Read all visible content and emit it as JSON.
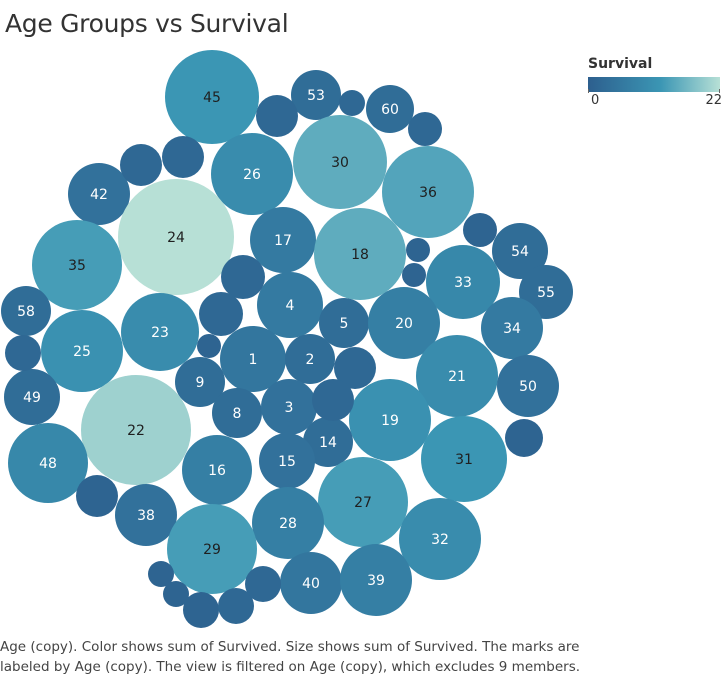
{
  "title": "Age Groups vs Survival",
  "legend": {
    "title": "Survival",
    "min_label": "0",
    "max_label": "22"
  },
  "caption": "Age (copy).  Color shows sum of Survived.  Size shows sum of Survived.  The marks are labeled by Age (copy). The view is filtered on Age (copy), which excludes 9 members.",
  "colors": {
    "low": "#2d5f8e",
    "mid": "#3b96b4",
    "high": "#b7e0d6"
  },
  "chart_data": {
    "type": "packed-bubble",
    "measure": "sum of Survived",
    "color_range": [
      0,
      22
    ],
    "bubbles": [
      {
        "label": "45",
        "value": 12
      },
      {
        "label": "53",
        "value": 3
      },
      {
        "label": "60",
        "value": 3
      },
      {
        "label": "26",
        "value": 10
      },
      {
        "label": "30",
        "value": 15
      },
      {
        "label": "36",
        "value": 14
      },
      {
        "label": "42",
        "value": 4
      },
      {
        "label": "24",
        "value": 22
      },
      {
        "label": "17",
        "value": 6
      },
      {
        "label": "18",
        "value": 15
      },
      {
        "label": "54",
        "value": 3
      },
      {
        "label": "35",
        "value": 13
      },
      {
        "label": "33",
        "value": 9
      },
      {
        "label": "55",
        "value": 3
      },
      {
        "label": "58",
        "value": 3
      },
      {
        "label": "4",
        "value": 6
      },
      {
        "label": "5",
        "value": 3
      },
      {
        "label": "20",
        "value": 7
      },
      {
        "label": "34",
        "value": 6
      },
      {
        "label": "23",
        "value": 10
      },
      {
        "label": "25",
        "value": 11
      },
      {
        "label": "1",
        "value": 5
      },
      {
        "label": "2",
        "value": 3
      },
      {
        "label": "21",
        "value": 10
      },
      {
        "label": "50",
        "value": 4
      },
      {
        "label": "9",
        "value": 3
      },
      {
        "label": "49",
        "value": 3
      },
      {
        "label": "8",
        "value": 3
      },
      {
        "label": "3",
        "value": 4
      },
      {
        "label": "19",
        "value": 11
      },
      {
        "label": "22",
        "value": 20
      },
      {
        "label": "14",
        "value": 3
      },
      {
        "label": "31",
        "value": 12
      },
      {
        "label": "16",
        "value": 7
      },
      {
        "label": "15",
        "value": 4
      },
      {
        "label": "48",
        "value": 9
      },
      {
        "label": "38",
        "value": 4
      },
      {
        "label": "27",
        "value": 13
      },
      {
        "label": "28",
        "value": 7
      },
      {
        "label": "32",
        "value": 10
      },
      {
        "label": "29",
        "value": 13
      },
      {
        "label": "40",
        "value": 5
      },
      {
        "label": "39",
        "value": 7
      },
      {
        "label": "",
        "value": 2
      },
      {
        "label": "",
        "value": 2
      },
      {
        "label": "",
        "value": 2
      },
      {
        "label": "",
        "value": 2
      },
      {
        "label": "",
        "value": 2
      },
      {
        "label": "",
        "value": 1
      },
      {
        "label": "",
        "value": 2
      },
      {
        "label": "",
        "value": 2
      },
      {
        "label": "",
        "value": 1
      },
      {
        "label": "",
        "value": 1
      },
      {
        "label": "",
        "value": 2
      },
      {
        "label": "",
        "value": 1
      },
      {
        "label": "",
        "value": 2
      },
      {
        "label": "",
        "value": 2
      },
      {
        "label": "",
        "value": 1
      },
      {
        "label": "",
        "value": 1
      },
      {
        "label": "",
        "value": 1
      },
      {
        "label": "",
        "value": 1
      },
      {
        "label": "",
        "value": 1
      },
      {
        "label": "",
        "value": 2
      },
      {
        "label": "",
        "value": 2
      },
      {
        "label": "",
        "value": 1
      },
      {
        "label": "",
        "value": 1
      },
      {
        "label": "",
        "value": 1
      },
      {
        "label": "",
        "value": 1
      }
    ]
  }
}
